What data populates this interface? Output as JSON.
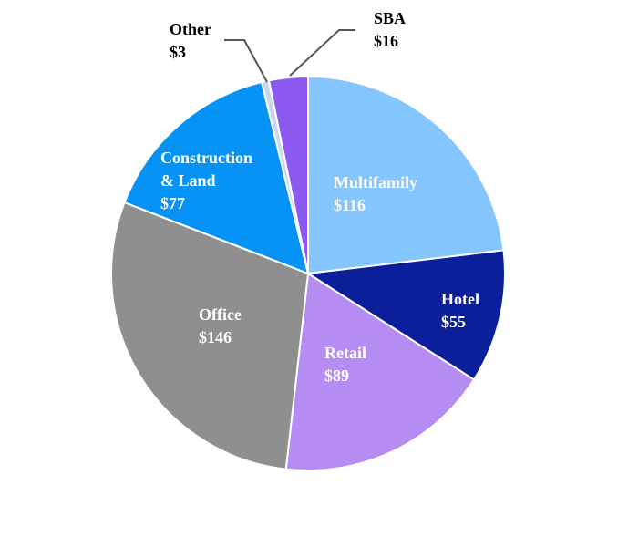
{
  "chart_data": {
    "type": "pie",
    "title": "",
    "unit": "$",
    "slices": [
      {
        "name": "Multifamily",
        "value": 116,
        "label": "$116",
        "color": "#85C6FF",
        "text_color": "#ffffff"
      },
      {
        "name": "Hotel",
        "value": 55,
        "label": "$55",
        "color": "#0A1F99",
        "text_color": "#ffffff"
      },
      {
        "name": "Retail",
        "value": 89,
        "label": "$89",
        "color": "#B48CF2",
        "text_color": "#ffffff"
      },
      {
        "name": "Office",
        "value": 146,
        "label": "$146",
        "color": "#8F8F8F",
        "text_color": "#ffffff"
      },
      {
        "name": "Construction\n& Land",
        "value": 77,
        "label": "$77",
        "color": "#0693F5",
        "text_color": "#ffffff"
      },
      {
        "name": "Other",
        "value": 3,
        "label": "$3",
        "color": "#C9D6F2",
        "text_color": "#000000"
      },
      {
        "name": "SBA",
        "value": 16,
        "label": "$16",
        "color": "#8C5AF0",
        "text_color": "#000000"
      }
    ],
    "legend": "none"
  }
}
